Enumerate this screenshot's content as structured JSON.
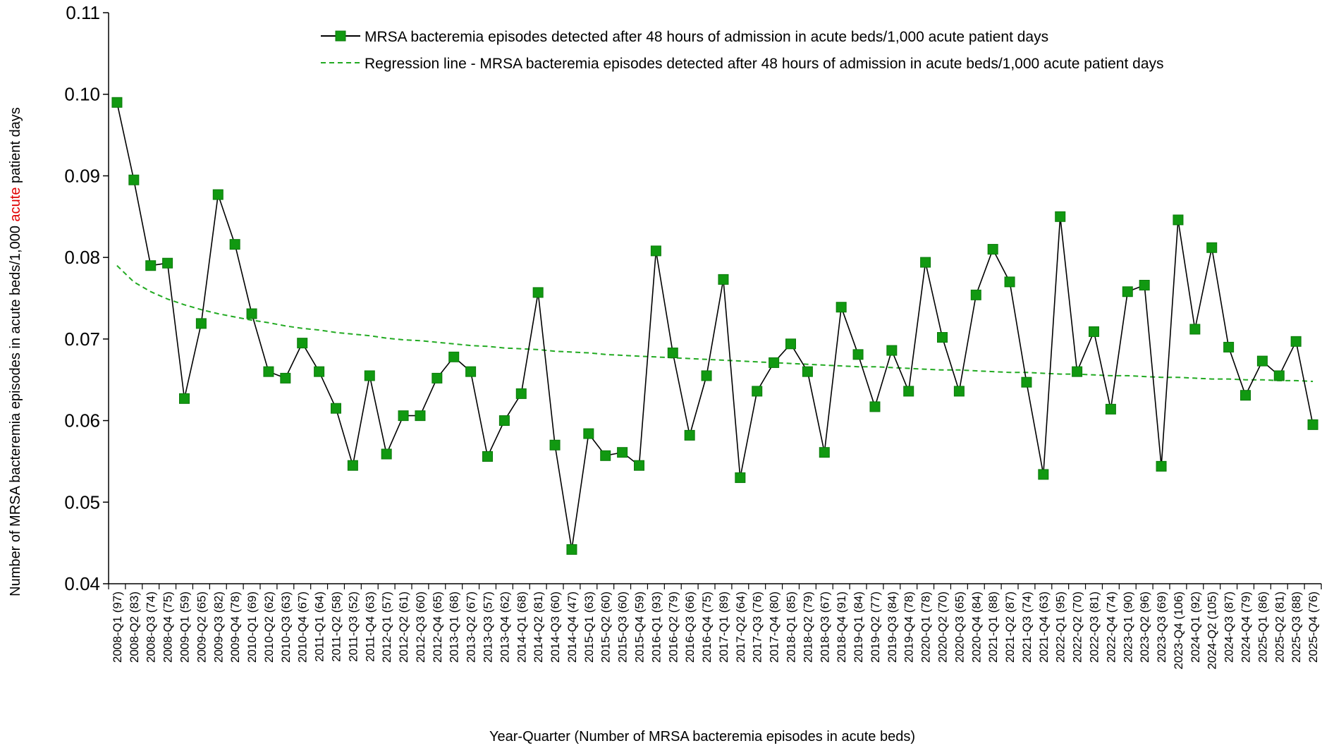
{
  "chart_data": {
    "type": "line",
    "title": "",
    "xlabel": "Year-Quarter (Number of MRSA bacteremia episodes in acute beds)",
    "ylabel_parts": [
      "Number of MRSA bacteremia episodes in acute beds/1,000 ",
      "acute",
      " patient days"
    ],
    "ylabel_highlight_color": "#e00000",
    "ylim": [
      0.04,
      0.11
    ],
    "yticks": [
      "0.04",
      "0.05",
      "0.06",
      "0.07",
      "0.08",
      "0.09",
      "0.10",
      "0.11"
    ],
    "legend_position": "top-right",
    "categories": [
      "2008-Q1 (97)",
      "2008-Q2 (83)",
      "2008-Q3 (74)",
      "2008-Q4 (75)",
      "2009-Q1 (59)",
      "2009-Q2 (65)",
      "2009-Q3 (82)",
      "2009-Q4 (78)",
      "2010-Q1 (69)",
      "2010-Q2 (62)",
      "2010-Q3 (63)",
      "2010-Q4 (67)",
      "2011-Q1 (64)",
      "2011-Q2 (58)",
      "2011-Q3 (52)",
      "2011-Q4 (63)",
      "2012-Q1 (57)",
      "2012-Q2 (61)",
      "2012-Q3 (60)",
      "2012-Q4 (65)",
      "2013-Q1 (68)",
      "2013-Q2 (67)",
      "2013-Q3 (57)",
      "2013-Q4 (62)",
      "2014-Q1 (68)",
      "2014-Q2 (81)",
      "2014-Q3 (60)",
      "2014-Q4 (47)",
      "2015-Q1 (63)",
      "2015-Q2 (60)",
      "2015-Q3 (60)",
      "2015-Q4 (59)",
      "2016-Q1 (93)",
      "2016-Q2 (79)",
      "2016-Q3 (66)",
      "2016-Q4 (75)",
      "2017-Q1 (89)",
      "2017-Q2 (64)",
      "2017-Q3 (76)",
      "2017-Q4 (80)",
      "2018-Q1 (85)",
      "2018-Q2 (79)",
      "2018-Q3 (67)",
      "2018-Q4 (91)",
      "2019-Q1 (84)",
      "2019-Q2 (77)",
      "2019-Q3 (84)",
      "2019-Q4 (78)",
      "2020-Q1 (78)",
      "2020-Q2 (70)",
      "2020-Q3 (65)",
      "2020-Q4 (84)",
      "2021-Q1 (88)",
      "2021-Q2 (87)",
      "2021-Q3 (74)",
      "2021-Q4 (63)",
      "2022-Q1 (95)",
      "2022-Q2 (70)",
      "2022-Q3 (81)",
      "2022-Q4 (74)",
      "2023-Q1 (90)",
      "2023-Q2 (96)",
      "2023-Q3 (69)",
      "2023-Q4 (106)",
      "2024-Q1 (92)",
      "2024-Q2 (105)",
      "2024-Q3 (87)",
      "2024-Q4 (79)",
      "2025-Q1 (86)",
      "2025-Q2 (81)",
      "2025-Q3 (88)",
      "2025-Q4 (76)"
    ],
    "series": [
      {
        "name": "MRSA bacteremia episodes detected after 48 hours of admission in acute beds/1,000 acute patient days",
        "style": "line-with-square-markers",
        "line_color": "#000000",
        "marker_color": "#119911",
        "values": [
          0.099,
          0.0895,
          0.079,
          0.0793,
          0.0627,
          0.0719,
          0.0877,
          0.0816,
          0.0731,
          0.066,
          0.0652,
          0.0695,
          0.066,
          0.0615,
          0.0545,
          0.0655,
          0.0559,
          0.0606,
          0.0606,
          0.0652,
          0.0678,
          0.066,
          0.0556,
          0.06,
          0.0633,
          0.0757,
          0.057,
          0.0442,
          0.0584,
          0.0557,
          0.0561,
          0.0545,
          0.0808,
          0.0683,
          0.0582,
          0.0655,
          0.0773,
          0.053,
          0.0636,
          0.0671,
          0.0694,
          0.066,
          0.0561,
          0.0739,
          0.0681,
          0.0617,
          0.0686,
          0.0636,
          0.0794,
          0.0702,
          0.0636,
          0.0754,
          0.081,
          0.077,
          0.0647,
          0.0534,
          0.085,
          0.066,
          0.0709,
          0.0614,
          0.0758,
          0.0766,
          0.0544,
          0.0846,
          0.0712,
          0.0812,
          0.069,
          0.0631,
          0.0673,
          0.0655,
          0.0697,
          0.0595
        ]
      },
      {
        "name": "Regression line - MRSA bacteremia episodes detected after 48 hours of admission in acute beds/1,000 acute patient days",
        "style": "dashed-line",
        "line_color": "#22aa22",
        "values": [
          0.079,
          0.077,
          0.0758,
          0.0749,
          0.0742,
          0.0736,
          0.0731,
          0.0727,
          0.0723,
          0.072,
          0.0716,
          0.0713,
          0.0711,
          0.0708,
          0.0706,
          0.0704,
          0.0701,
          0.0699,
          0.0698,
          0.0696,
          0.0694,
          0.0692,
          0.0691,
          0.0689,
          0.0688,
          0.0687,
          0.0685,
          0.0684,
          0.0683,
          0.0681,
          0.068,
          0.0679,
          0.0678,
          0.0677,
          0.0676,
          0.0675,
          0.0674,
          0.0673,
          0.0672,
          0.0671,
          0.067,
          0.0669,
          0.0668,
          0.0667,
          0.0666,
          0.0666,
          0.0665,
          0.0664,
          0.0663,
          0.0662,
          0.0662,
          0.0661,
          0.066,
          0.0659,
          0.0659,
          0.0658,
          0.0657,
          0.0657,
          0.0656,
          0.0655,
          0.0655,
          0.0654,
          0.0653,
          0.0653,
          0.0652,
          0.0651,
          0.0651,
          0.065,
          0.065,
          0.0649,
          0.0649,
          0.0648
        ]
      }
    ]
  }
}
